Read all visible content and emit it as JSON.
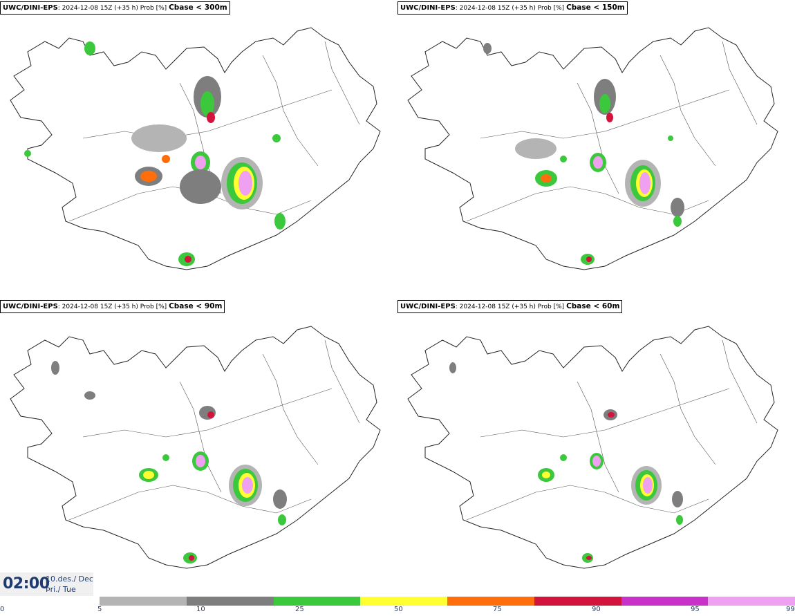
{
  "panels": [
    {
      "name": "UWC/DINI-EPS",
      "meta": "2024-12-08 15Z (+35 h) Prob [%]",
      "threshold": "Cbase < 300m"
    },
    {
      "name": "UWC/DINI-EPS",
      "meta": "2024-12-08 15Z (+35 h) Prob [%]",
      "threshold": "Cbase < 150m"
    },
    {
      "name": "UWC/DINI-EPS",
      "meta": "2024-12-08 15Z (+35 h) Prob [%]",
      "threshold": "Cbase < 90m"
    },
    {
      "name": "UWC/DINI-EPS",
      "meta": "2024-12-08 15Z (+35 h) Prob [%]",
      "threshold": "Cbase < 60m"
    }
  ],
  "time": {
    "clock": "02:00",
    "date": "10.des./ Dec",
    "weekday": "Þri./ Tue"
  },
  "colorbar": {
    "ticks": [
      "0",
      "5",
      "10",
      "25",
      "50",
      "75",
      "90",
      "95",
      "99"
    ],
    "colors": [
      "#b4b4b4",
      "#7e7e7e",
      "#3cc83c",
      "#ffff32",
      "#ff6e0a",
      "#d2143c",
      "#c832c8",
      "#f0a0f0"
    ]
  }
}
